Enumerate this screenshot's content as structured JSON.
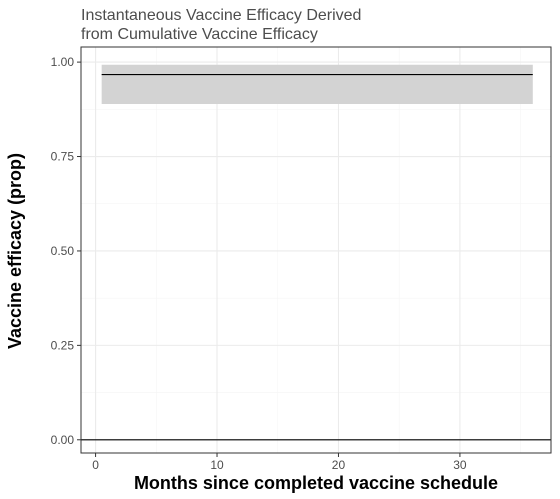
{
  "chart_data": {
    "type": "line",
    "title_lines": [
      "Instantaneous Vaccine Efficacy Derived",
      "from Cumulative Vaccine Efficacy"
    ],
    "xlabel": "Months since completed vaccine schedule",
    "ylabel": "Vaccine efficacy (prop)",
    "xlim": [
      -1.2,
      37.5
    ],
    "ylim": [
      -0.035,
      1.04
    ],
    "x_ticks": [
      0,
      10,
      20,
      30
    ],
    "x_tick_labels": [
      "0",
      "10",
      "20",
      "30"
    ],
    "y_ticks": [
      0,
      0.25,
      0.5,
      0.75,
      1.0
    ],
    "y_tick_labels": [
      "0.00",
      "0.25",
      "0.50",
      "0.75",
      "1.00"
    ],
    "grid": true,
    "reference_line": {
      "y": 0
    },
    "series": [
      {
        "x": [
          0.5,
          36
        ],
        "y": [
          0.967,
          0.967
        ],
        "ci_lower": [
          0.889,
          0.889
        ],
        "ci_upper": [
          0.993,
          0.993
        ]
      }
    ],
    "colors": {
      "line": "#000000",
      "ribbon": "#d3d3d3",
      "panel_border": "#333333",
      "grid_major": "#ebebeb",
      "grid_minor": "#f5f5f5"
    }
  }
}
